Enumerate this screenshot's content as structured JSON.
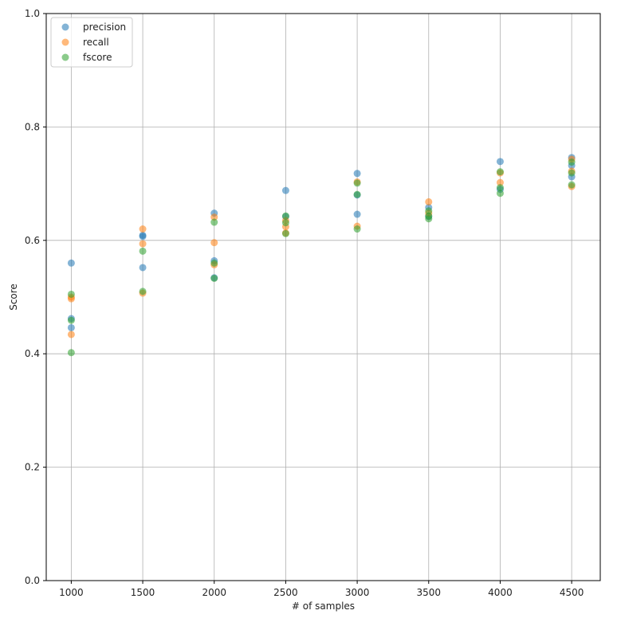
{
  "chart_data": {
    "type": "scatter",
    "xlabel": "# of samples",
    "ylabel": "Score",
    "xlim": [
      825,
      4700
    ],
    "ylim": [
      0.0,
      1.0
    ],
    "xticks": [
      "1000",
      "1500",
      "2000",
      "2500",
      "3000",
      "3500",
      "4000",
      "4500"
    ],
    "yticks": [
      "0.0",
      "0.2",
      "0.4",
      "0.6",
      "0.8",
      "1.0"
    ],
    "grid": true,
    "legend_position": "top-left",
    "series": [
      {
        "name": "precision",
        "color": "#1f77b4",
        "points": [
          [
            1000,
            0.56
          ],
          [
            1000,
            0.462
          ],
          [
            1000,
            0.446
          ],
          [
            1500,
            0.609
          ],
          [
            1500,
            0.607
          ],
          [
            1500,
            0.552
          ],
          [
            2000,
            0.648
          ],
          [
            2000,
            0.564
          ],
          [
            2000,
            0.534
          ],
          [
            2500,
            0.688
          ],
          [
            2500,
            0.642
          ],
          [
            3000,
            0.718
          ],
          [
            3000,
            0.68
          ],
          [
            3000,
            0.646
          ],
          [
            3500,
            0.658
          ],
          [
            3500,
            0.642
          ],
          [
            4000,
            0.739
          ],
          [
            4000,
            0.69
          ],
          [
            4500,
            0.746
          ],
          [
            4500,
            0.732
          ],
          [
            4500,
            0.712
          ]
        ]
      },
      {
        "name": "recall",
        "color": "#ff7f0e",
        "points": [
          [
            1000,
            0.5
          ],
          [
            1000,
            0.497
          ],
          [
            1000,
            0.434
          ],
          [
            1500,
            0.62
          ],
          [
            1500,
            0.594
          ],
          [
            1500,
            0.507
          ],
          [
            2000,
            0.641
          ],
          [
            2000,
            0.596
          ],
          [
            2000,
            0.557
          ],
          [
            2500,
            0.635
          ],
          [
            2500,
            0.624
          ],
          [
            2500,
            0.613
          ],
          [
            3000,
            0.703
          ],
          [
            3000,
            0.625
          ],
          [
            3500,
            0.668
          ],
          [
            3500,
            0.648
          ],
          [
            4000,
            0.702
          ],
          [
            4000,
            0.719
          ],
          [
            4500,
            0.743
          ],
          [
            4500,
            0.722
          ],
          [
            4500,
            0.695
          ]
        ]
      },
      {
        "name": "fscore",
        "color": "#2ca02c",
        "points": [
          [
            1000,
            0.505
          ],
          [
            1000,
            0.459
          ],
          [
            1000,
            0.402
          ],
          [
            1500,
            0.581
          ],
          [
            1500,
            0.51
          ],
          [
            2000,
            0.632
          ],
          [
            2000,
            0.56
          ],
          [
            2000,
            0.533
          ],
          [
            2500,
            0.643
          ],
          [
            2500,
            0.631
          ],
          [
            2500,
            0.612
          ],
          [
            3000,
            0.701
          ],
          [
            3000,
            0.681
          ],
          [
            3000,
            0.62
          ],
          [
            3500,
            0.652
          ],
          [
            3500,
            0.643
          ],
          [
            3500,
            0.638
          ],
          [
            4000,
            0.721
          ],
          [
            4000,
            0.693
          ],
          [
            4000,
            0.683
          ],
          [
            4500,
            0.738
          ],
          [
            4500,
            0.719
          ],
          [
            4500,
            0.698
          ]
        ]
      }
    ]
  }
}
